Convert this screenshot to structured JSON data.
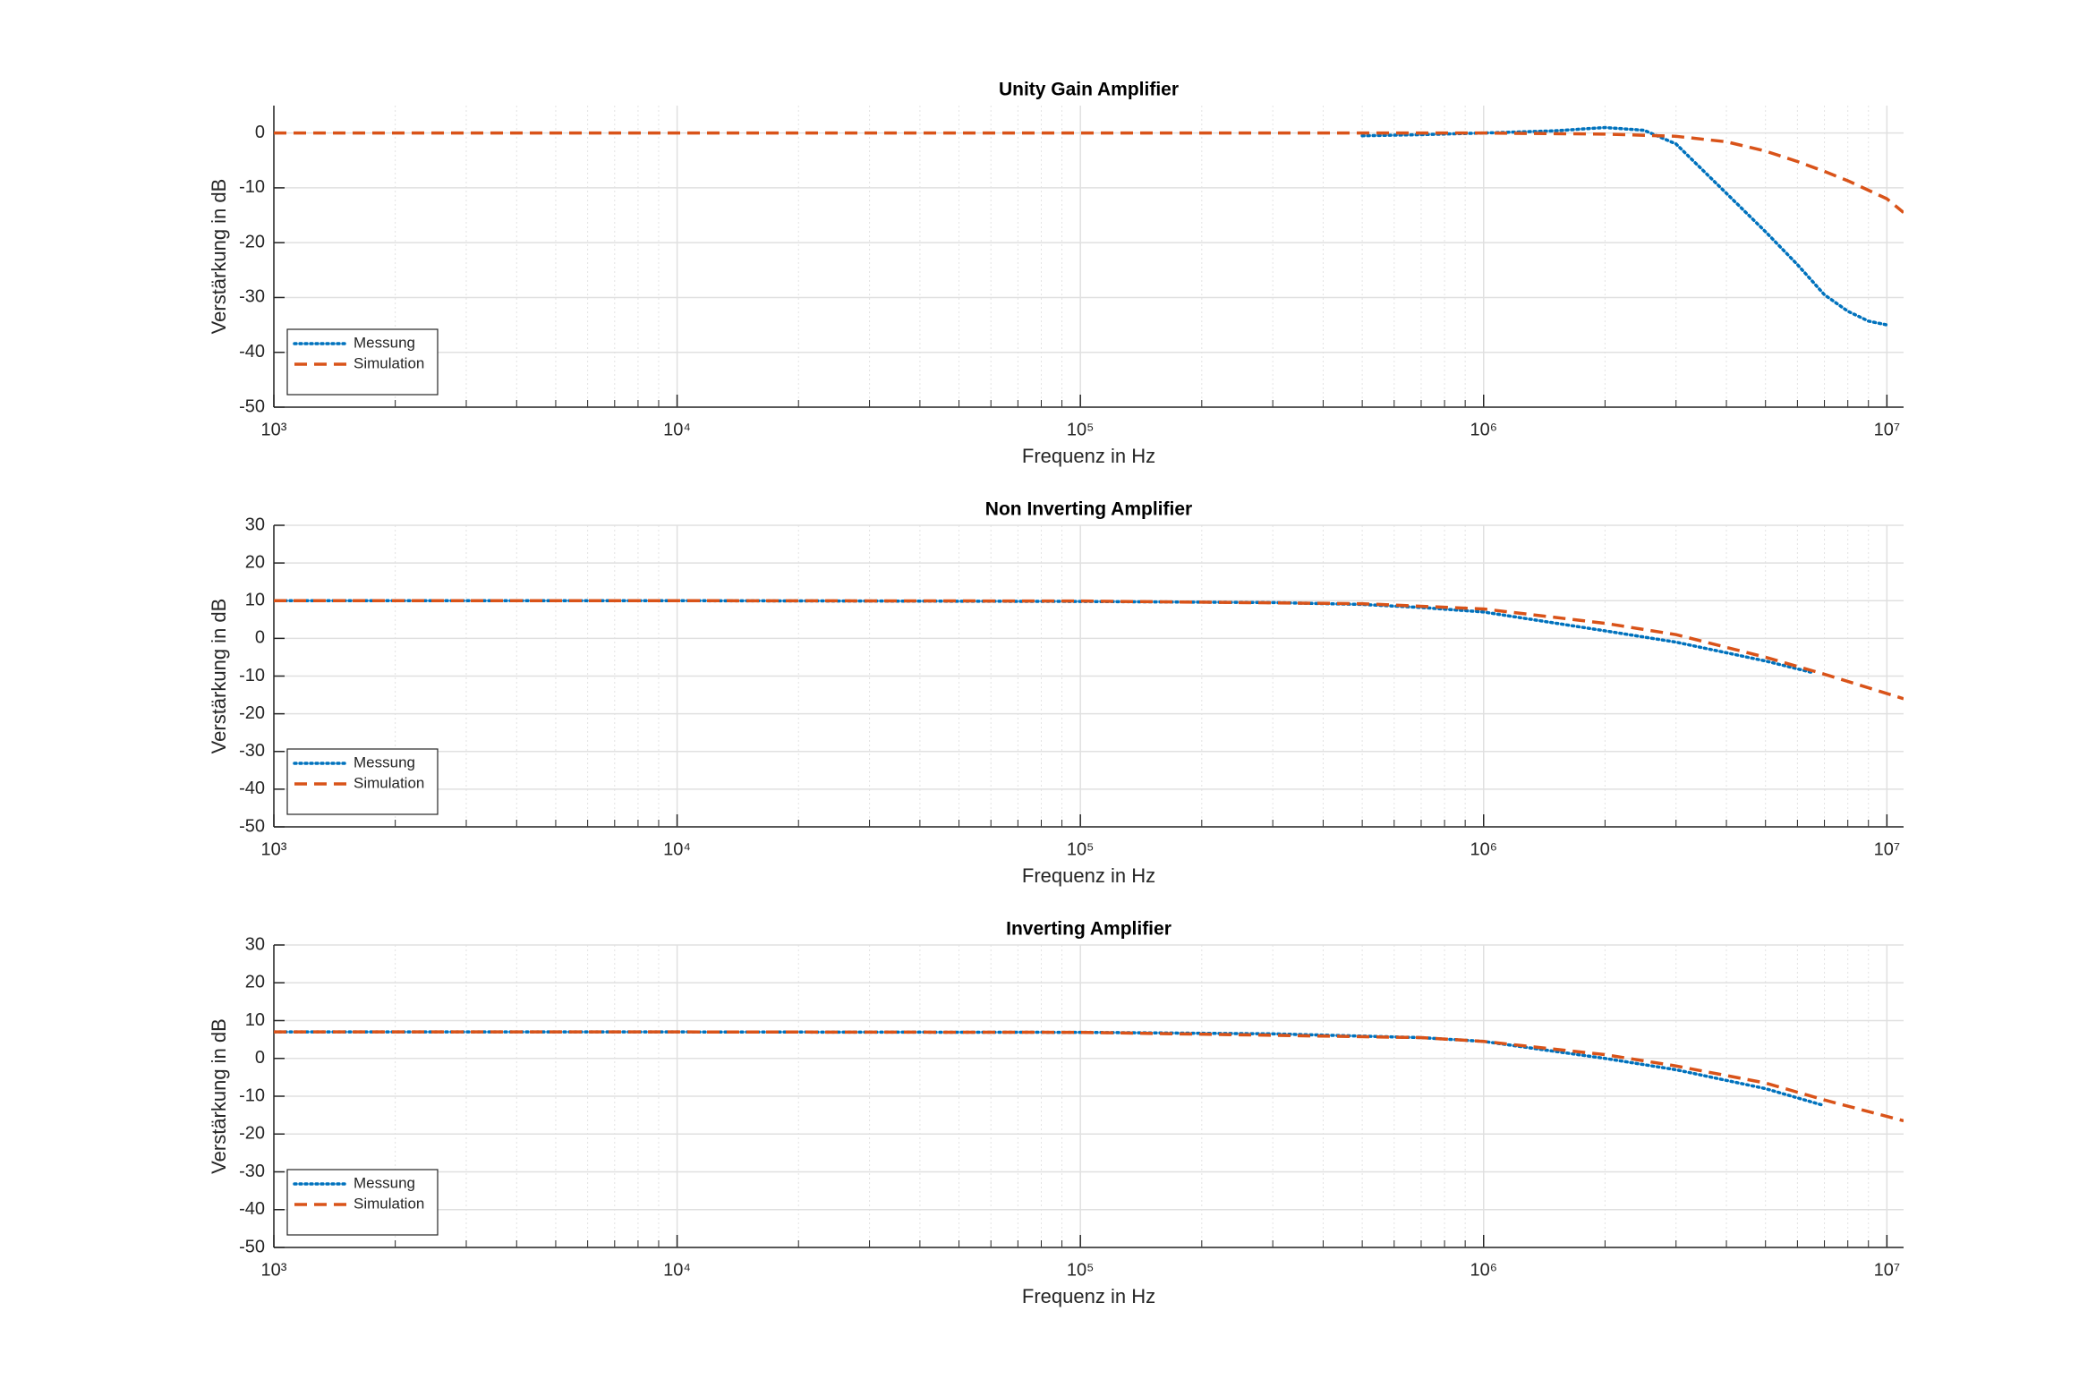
{
  "chart_data": [
    {
      "type": "line",
      "title": "Unity Gain Amplifier",
      "xlabel": "Frequenz in Hz",
      "ylabel": "Verstärkung in dB",
      "xscale": "log",
      "grid": true,
      "legend": "lower left",
      "xlim": [
        1000,
        11000000
      ],
      "xticks": [
        {
          "value": 1000,
          "label": "10³"
        },
        {
          "value": 10000,
          "label": "10⁴"
        },
        {
          "value": 100000,
          "label": "10⁵"
        },
        {
          "value": 1000000,
          "label": "10⁶"
        },
        {
          "value": 10000000,
          "label": "10⁷"
        }
      ],
      "ylim": [
        -50,
        5
      ],
      "yticks": [
        -50,
        -40,
        -30,
        -20,
        -10,
        0
      ],
      "series": [
        {
          "name": "Messung",
          "color": "#0072bd",
          "style": "dotted",
          "x": [
            500000,
            700000,
            1000000,
            1500000,
            2000000,
            2500000,
            3000000,
            4000000,
            5000000,
            6000000,
            7000000,
            8000000,
            9000000,
            10000000
          ],
          "values": [
            -0.5,
            -0.3,
            0,
            0.4,
            1,
            0.5,
            -2,
            -11,
            -18,
            -24,
            -29.5,
            -32.5,
            -34.3,
            -35
          ]
        },
        {
          "name": "Simulation",
          "color": "#d95319",
          "style": "dashed",
          "x": [
            1000,
            100000,
            1000000,
            2000000,
            3000000,
            4000000,
            5000000,
            6000000,
            7000000,
            8000000,
            10000000,
            11000000
          ],
          "values": [
            0,
            0,
            0,
            -0.2,
            -0.6,
            -1.6,
            -3.3,
            -5.2,
            -7,
            -8.7,
            -12,
            -14.5
          ]
        }
      ]
    },
    {
      "type": "line",
      "title": "Non Inverting Amplifier",
      "xlabel": "Frequenz in Hz",
      "ylabel": "Verstärkung in dB",
      "xscale": "log",
      "grid": true,
      "legend": "lower left",
      "xlim": [
        1000,
        11000000
      ],
      "xticks": [
        {
          "value": 1000,
          "label": "10³"
        },
        {
          "value": 10000,
          "label": "10⁴"
        },
        {
          "value": 100000,
          "label": "10⁵"
        },
        {
          "value": 1000000,
          "label": "10⁶"
        },
        {
          "value": 10000000,
          "label": "10⁷"
        }
      ],
      "ylim": [
        -50,
        30
      ],
      "yticks": [
        -50,
        -40,
        -30,
        -20,
        -10,
        0,
        10,
        20,
        30
      ],
      "series": [
        {
          "name": "Messung",
          "color": "#0072bd",
          "style": "dotted",
          "x": [
            1000,
            10000,
            100000,
            300000,
            500000,
            700000,
            1000000,
            2000000,
            3000000,
            5000000,
            6500000
          ],
          "values": [
            10,
            10,
            9.8,
            9.5,
            9,
            8.2,
            7,
            2,
            -1,
            -6,
            -9
          ]
        },
        {
          "name": "Simulation",
          "color": "#d95319",
          "style": "dashed",
          "x": [
            1000,
            10000,
            100000,
            500000,
            1000000,
            2000000,
            3000000,
            5000000,
            7000000,
            11000000
          ],
          "values": [
            10,
            10,
            9.9,
            9.2,
            7.8,
            4,
            1,
            -5,
            -9.5,
            -16
          ]
        }
      ]
    },
    {
      "type": "line",
      "title": "Inverting Amplifier",
      "xlabel": "Frequenz in Hz",
      "ylabel": "Verstärkung in dB",
      "xscale": "log",
      "grid": true,
      "legend": "lower left",
      "xlim": [
        1000,
        11000000
      ],
      "xticks": [
        {
          "value": 1000,
          "label": "10³"
        },
        {
          "value": 10000,
          "label": "10⁴"
        },
        {
          "value": 100000,
          "label": "10⁵"
        },
        {
          "value": 1000000,
          "label": "10⁶"
        },
        {
          "value": 10000000,
          "label": "10⁷"
        }
      ],
      "ylim": [
        -50,
        30
      ],
      "yticks": [
        -50,
        -40,
        -30,
        -20,
        -10,
        0,
        10,
        20,
        30
      ],
      "series": [
        {
          "name": "Messung",
          "color": "#0072bd",
          "style": "dotted",
          "x": [
            1000,
            10000,
            100000,
            300000,
            700000,
            1000000,
            2000000,
            3000000,
            5000000,
            7000000
          ],
          "values": [
            7,
            7,
            6.9,
            6.5,
            5.5,
            4.5,
            0,
            -3,
            -8,
            -12.5
          ]
        },
        {
          "name": "Simulation",
          "color": "#d95319",
          "style": "dashed",
          "x": [
            1000,
            10000,
            100000,
            700000,
            1000000,
            2000000,
            3000000,
            5000000,
            7000000,
            11000000
          ],
          "values": [
            7,
            7,
            6.9,
            5.5,
            4.5,
            1,
            -2,
            -6.5,
            -11,
            -16.5
          ]
        }
      ]
    }
  ]
}
